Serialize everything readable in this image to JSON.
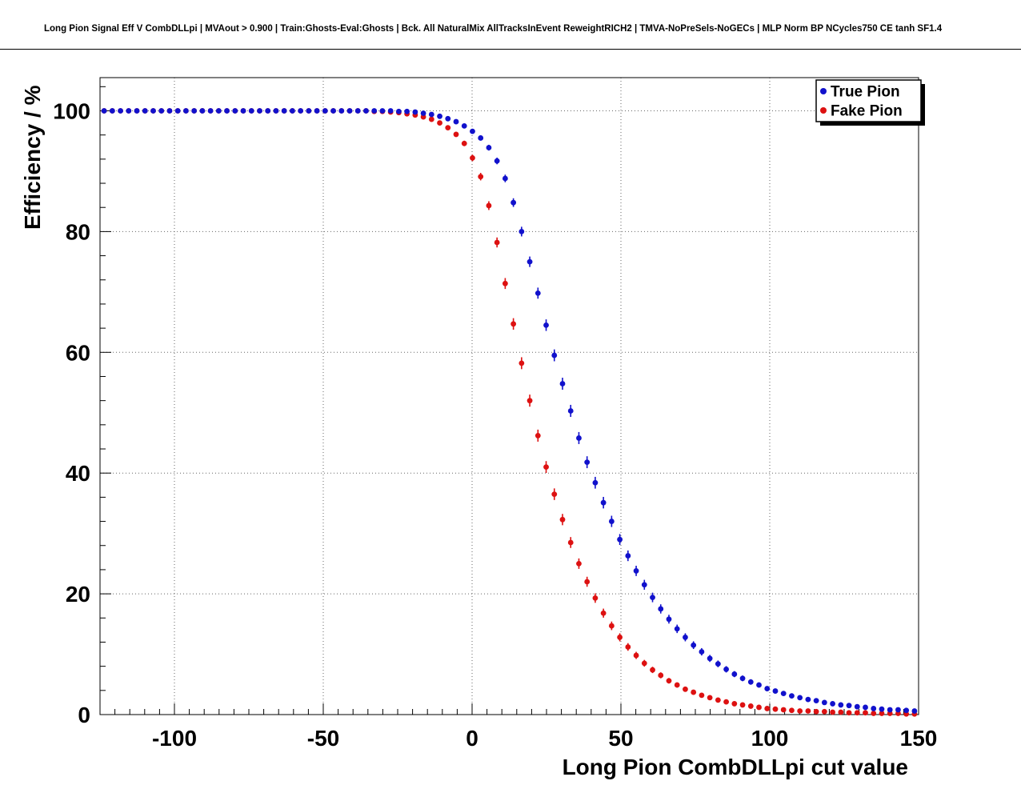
{
  "title": "Long Pion Signal Eff V CombDLLpi | MVAout > 0.900 | Train:Ghosts-Eval:Ghosts | Bck. All NaturalMix AllTracksInEvent ReweightRICH2 | TMVA-NoPreSels-NoGECs | MLP Norm BP NCycles750 CE tanh SF1.4",
  "colors": {
    "true_pion": "#1111cc",
    "fake_pion": "#dd1111",
    "grid": "#666666",
    "frame": "#000000",
    "background": "#ffffff"
  },
  "chart_data": {
    "type": "scatter",
    "title": "",
    "xlabel": "Long Pion CombDLLpi cut value",
    "ylabel": "Efficiency / %",
    "xlim": [
      -125,
      150
    ],
    "ylim": [
      0,
      105.5
    ],
    "x_ticks": [
      -100,
      -50,
      0,
      50,
      100,
      150
    ],
    "y_ticks": [
      0,
      20,
      40,
      60,
      80,
      100
    ],
    "grid": "dotted",
    "legend_position": "top-right",
    "legend_entries": [
      "True Pion",
      "Fake Pion"
    ],
    "x_start": -123.625,
    "x_step": 2.75,
    "series": [
      {
        "name": "True Pion",
        "color": "#1111cc",
        "values": [
          100,
          100,
          100,
          100,
          100,
          100,
          100,
          100,
          100,
          100,
          100,
          100,
          100,
          100,
          100,
          100,
          100,
          100,
          100,
          100,
          100,
          100,
          100,
          100,
          100,
          100,
          100,
          100,
          100,
          100,
          100,
          100,
          100,
          100,
          100,
          100,
          99.9,
          99.9,
          99.8,
          99.6,
          99.4,
          99.1,
          98.7,
          98.2,
          97.5,
          96.6,
          95.5,
          93.9,
          91.7,
          88.8,
          84.8,
          80.0,
          75.0,
          69.8,
          64.5,
          59.5,
          54.8,
          50.3,
          45.8,
          41.8,
          38.4,
          35.1,
          32.0,
          29.0,
          26.3,
          23.8,
          21.5,
          19.4,
          17.5,
          15.8,
          14.2,
          12.8,
          11.5,
          10.4,
          9.3,
          8.4,
          7.5,
          6.7,
          6.0,
          5.4,
          4.9,
          4.3,
          3.9,
          3.5,
          3.1,
          2.8,
          2.5,
          2.3,
          2.0,
          1.8,
          1.6,
          1.5,
          1.3,
          1.2,
          1.0,
          0.9,
          0.8,
          0.8,
          0.7,
          0.6
        ]
      },
      {
        "name": "Fake Pion",
        "color": "#dd1111",
        "values": [
          100,
          100,
          100,
          100,
          100,
          100,
          100,
          100,
          100,
          100,
          100,
          100,
          100,
          100,
          100,
          100,
          100,
          100,
          100,
          100,
          100,
          100,
          100,
          100,
          100,
          100,
          100,
          100,
          100,
          100,
          100,
          100,
          100,
          99.9,
          99.9,
          99.8,
          99.7,
          99.5,
          99.3,
          99.0,
          98.6,
          98.0,
          97.2,
          96.1,
          94.6,
          92.2,
          89.1,
          84.3,
          78.2,
          71.4,
          64.7,
          58.2,
          52.0,
          46.2,
          41.0,
          36.5,
          32.3,
          28.5,
          25.0,
          22.0,
          19.3,
          16.8,
          14.7,
          12.8,
          11.2,
          9.8,
          8.5,
          7.4,
          6.5,
          5.6,
          4.9,
          4.2,
          3.7,
          3.2,
          2.8,
          2.4,
          2.1,
          1.8,
          1.6,
          1.4,
          1.2,
          1.0,
          0.9,
          0.8,
          0.7,
          0.6,
          0.6,
          0.5,
          0.5,
          0.4,
          0.4,
          0.3,
          0.3,
          0.3,
          0.2,
          0.2,
          0.2,
          0.2,
          0.1,
          0.1
        ]
      }
    ]
  }
}
